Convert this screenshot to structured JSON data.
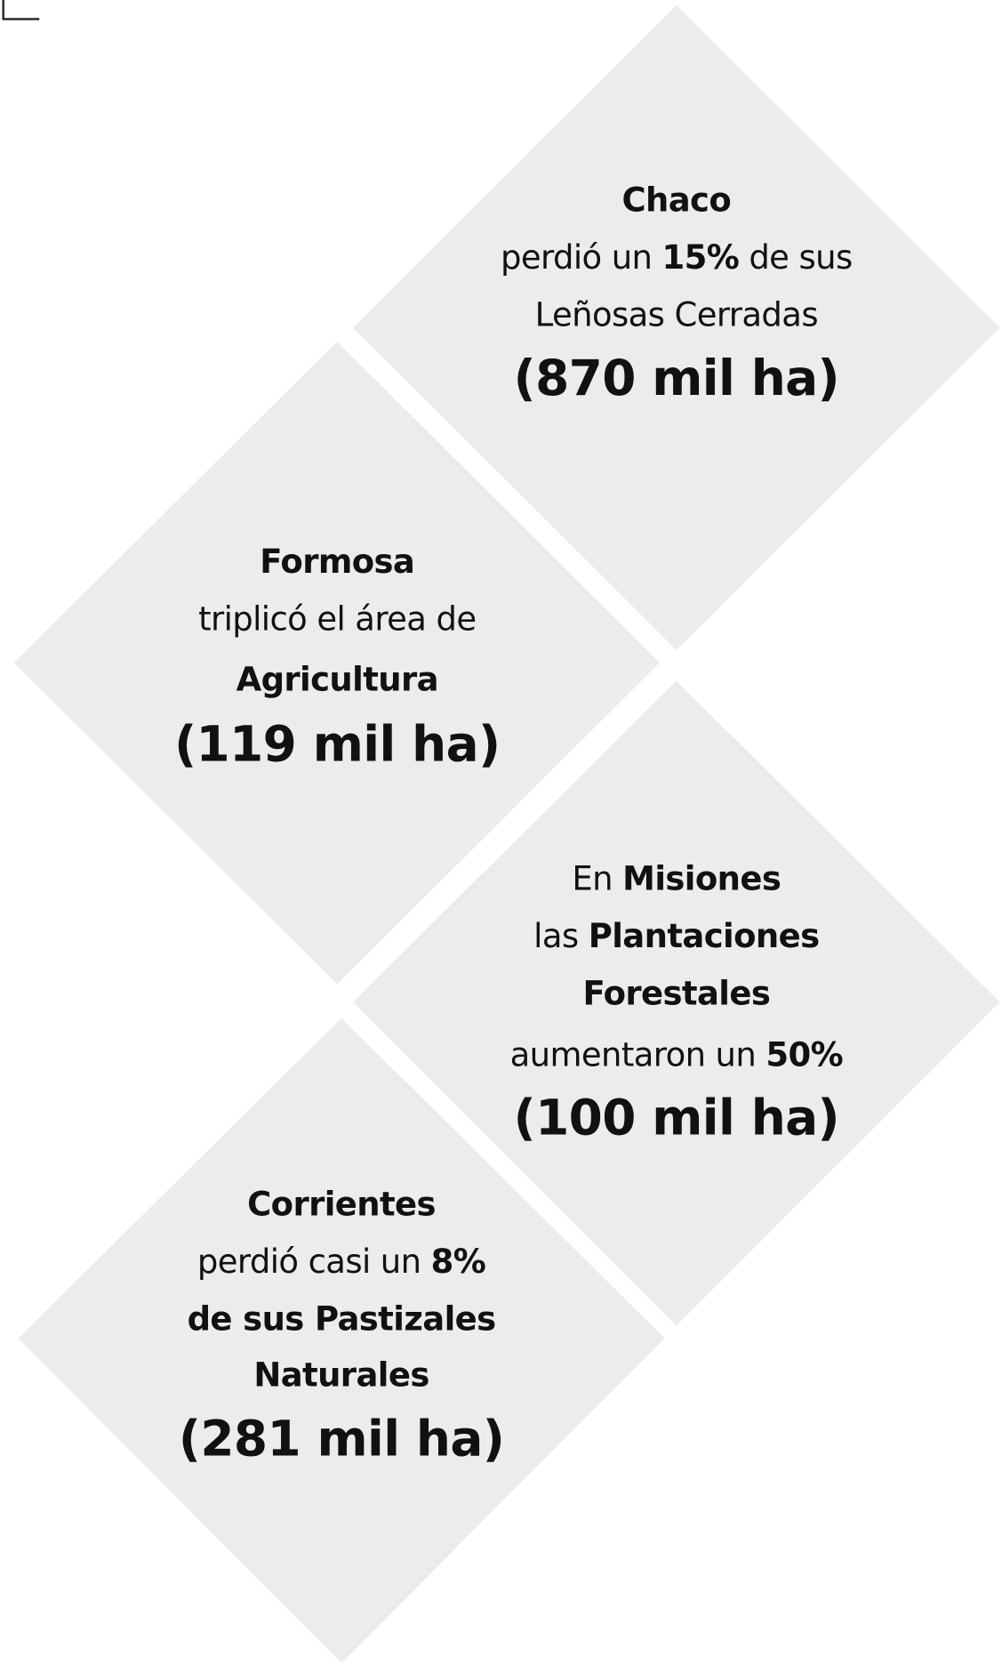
{
  "cards": [
    {
      "lines": [
        [
          {
            "text": "Chaco",
            "bold": true
          }
        ],
        [
          {
            "text": "perdió un ",
            "bold": false
          },
          {
            "text": "15%",
            "bold": true
          },
          {
            "text": " de sus",
            "bold": false
          }
        ],
        [
          {
            "text": "Leñosas Cerradas",
            "bold": false
          }
        ],
        [
          {
            "text": "(870 mil ha)",
            "bold": true
          }
        ]
      ]
    },
    {
      "lines": [
        [
          {
            "text": "Formosa",
            "bold": true
          }
        ],
        [
          {
            "text": "triplicó el área de",
            "bold": false
          }
        ],
        [
          {
            "text": "Agricultura",
            "bold": true
          }
        ],
        [
          {
            "text": "(119 mil ha)",
            "bold": true
          }
        ]
      ]
    },
    {
      "lines": [
        [
          {
            "text": "En ",
            "bold": false
          },
          {
            "text": "Misiones",
            "bold": true
          }
        ],
        [
          {
            "text": "las ",
            "bold": false
          },
          {
            "text": "Plantaciones",
            "bold": true
          }
        ],
        [
          {
            "text": "Forestales",
            "bold": true
          }
        ],
        [
          {
            "text": "aumentaron un ",
            "bold": false
          },
          {
            "text": "50%",
            "bold": true
          }
        ],
        [
          {
            "text": "(100 mil ha)",
            "bold": true
          }
        ]
      ]
    },
    {
      "lines": [
        [
          {
            "text": "Corrientes",
            "bold": true
          }
        ],
        [
          {
            "text": "perdió casi un ",
            "bold": false
          },
          {
            "text": "8%",
            "bold": true
          }
        ],
        [
          {
            "text": "de sus Pastizales",
            "bold": true
          }
        ],
        [
          {
            "text": "Naturales",
            "bold": true
          }
        ],
        [
          {
            "text": "(281 mil ha)",
            "bold": true
          }
        ]
      ]
    }
  ]
}
